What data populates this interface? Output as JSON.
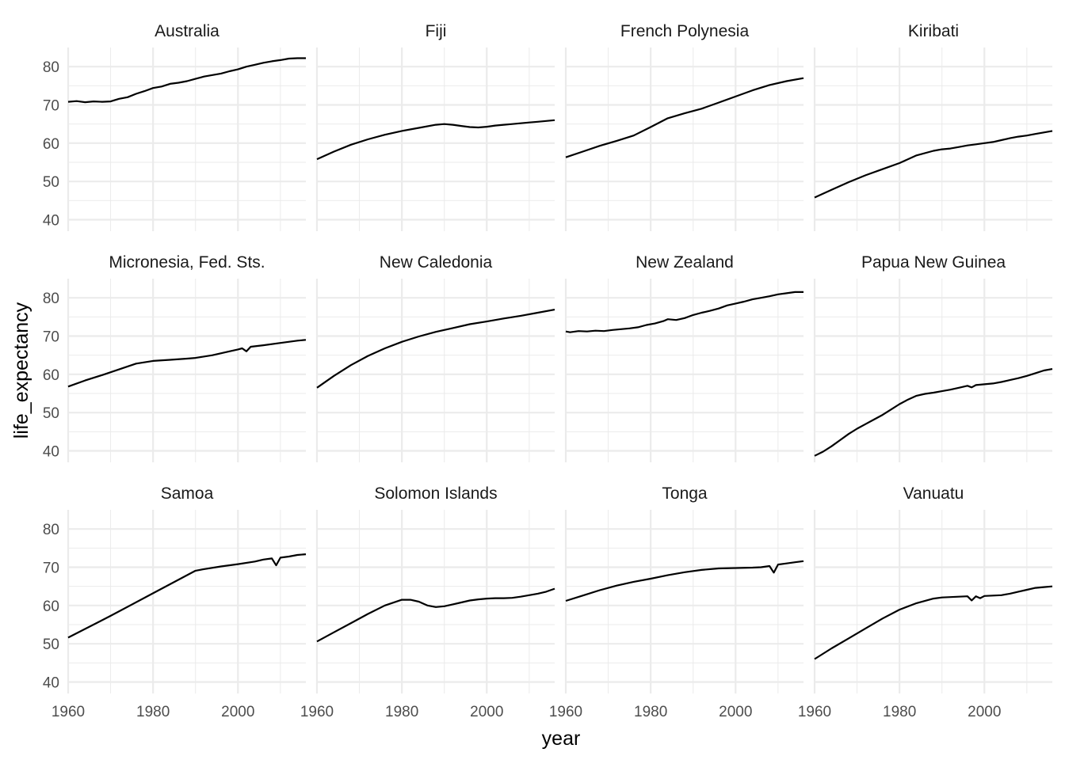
{
  "chart_data": {
    "type": "line",
    "layout": "facet-grid",
    "xlabel": "year",
    "ylabel": "life_expectancy",
    "xlim": [
      1960,
      2016
    ],
    "ylim": [
      37,
      85
    ],
    "x_ticks": [
      1960,
      1980,
      2000
    ],
    "x_tick_labels": [
      "1960",
      "1980",
      "2000"
    ],
    "y_ticks": [
      40,
      50,
      60,
      70,
      80
    ],
    "y_tick_labels": [
      "40",
      "50",
      "60",
      "70",
      "80"
    ],
    "grid": true,
    "line_color": "#000000",
    "grid_color": "#ebebeb",
    "panels": [
      {
        "title": "Australia",
        "points": [
          [
            1960,
            70.8
          ],
          [
            1962,
            71.0
          ],
          [
            1964,
            70.7
          ],
          [
            1966,
            70.9
          ],
          [
            1968,
            70.8
          ],
          [
            1970,
            70.9
          ],
          [
            1972,
            71.6
          ],
          [
            1974,
            72.0
          ],
          [
            1976,
            72.9
          ],
          [
            1978,
            73.6
          ],
          [
            1980,
            74.4
          ],
          [
            1982,
            74.8
          ],
          [
            1984,
            75.5
          ],
          [
            1986,
            75.8
          ],
          [
            1988,
            76.2
          ],
          [
            1990,
            76.8
          ],
          [
            1992,
            77.4
          ],
          [
            1994,
            77.8
          ],
          [
            1996,
            78.2
          ],
          [
            1998,
            78.8
          ],
          [
            2000,
            79.3
          ],
          [
            2002,
            80.0
          ],
          [
            2004,
            80.5
          ],
          [
            2006,
            81.0
          ],
          [
            2008,
            81.4
          ],
          [
            2010,
            81.7
          ],
          [
            2012,
            82.1
          ],
          [
            2014,
            82.2
          ],
          [
            2016,
            82.2
          ]
        ]
      },
      {
        "title": "Fiji",
        "points": [
          [
            1960,
            55.8
          ],
          [
            1964,
            57.8
          ],
          [
            1968,
            59.6
          ],
          [
            1972,
            61.0
          ],
          [
            1976,
            62.2
          ],
          [
            1980,
            63.2
          ],
          [
            1984,
            64.0
          ],
          [
            1988,
            64.8
          ],
          [
            1990,
            65.0
          ],
          [
            1992,
            64.8
          ],
          [
            1994,
            64.5
          ],
          [
            1996,
            64.2
          ],
          [
            1998,
            64.1
          ],
          [
            2000,
            64.3
          ],
          [
            2002,
            64.6
          ],
          [
            2004,
            64.8
          ],
          [
            2006,
            65.0
          ],
          [
            2008,
            65.2
          ],
          [
            2010,
            65.4
          ],
          [
            2012,
            65.6
          ],
          [
            2014,
            65.8
          ],
          [
            2016,
            66.0
          ]
        ]
      },
      {
        "title": "French Polynesia",
        "points": [
          [
            1960,
            56.3
          ],
          [
            1964,
            57.8
          ],
          [
            1968,
            59.3
          ],
          [
            1972,
            60.6
          ],
          [
            1976,
            62.0
          ],
          [
            1980,
            64.2
          ],
          [
            1984,
            66.5
          ],
          [
            1988,
            67.8
          ],
          [
            1992,
            69.0
          ],
          [
            1996,
            70.6
          ],
          [
            2000,
            72.2
          ],
          [
            2004,
            73.8
          ],
          [
            2008,
            75.2
          ],
          [
            2012,
            76.2
          ],
          [
            2016,
            77.0
          ]
        ]
      },
      {
        "title": "Kiribati",
        "points": [
          [
            1960,
            45.8
          ],
          [
            1964,
            47.8
          ],
          [
            1968,
            49.8
          ],
          [
            1972,
            51.6
          ],
          [
            1976,
            53.2
          ],
          [
            1980,
            54.8
          ],
          [
            1984,
            56.8
          ],
          [
            1988,
            58.0
          ],
          [
            1990,
            58.4
          ],
          [
            1992,
            58.6
          ],
          [
            1994,
            59.0
          ],
          [
            1996,
            59.4
          ],
          [
            1998,
            59.7
          ],
          [
            2000,
            60.0
          ],
          [
            2002,
            60.3
          ],
          [
            2004,
            60.8
          ],
          [
            2006,
            61.3
          ],
          [
            2008,
            61.7
          ],
          [
            2010,
            62.0
          ],
          [
            2012,
            62.4
          ],
          [
            2014,
            62.8
          ],
          [
            2016,
            63.2
          ]
        ]
      },
      {
        "title": "Micronesia, Fed. Sts.",
        "points": [
          [
            1960,
            56.8
          ],
          [
            1964,
            58.4
          ],
          [
            1968,
            59.8
          ],
          [
            1972,
            61.3
          ],
          [
            1976,
            62.8
          ],
          [
            1980,
            63.5
          ],
          [
            1984,
            63.8
          ],
          [
            1988,
            64.1
          ],
          [
            1990,
            64.3
          ],
          [
            1994,
            65.0
          ],
          [
            1998,
            66.0
          ],
          [
            2000,
            66.5
          ],
          [
            2001,
            66.8
          ],
          [
            2002,
            66.0
          ],
          [
            2003,
            67.2
          ],
          [
            2006,
            67.6
          ],
          [
            2010,
            68.2
          ],
          [
            2014,
            68.8
          ],
          [
            2016,
            69.0
          ]
        ]
      },
      {
        "title": "New Caledonia",
        "points": [
          [
            1960,
            56.5
          ],
          [
            1964,
            59.6
          ],
          [
            1968,
            62.4
          ],
          [
            1972,
            64.8
          ],
          [
            1976,
            66.8
          ],
          [
            1980,
            68.5
          ],
          [
            1984,
            69.9
          ],
          [
            1988,
            71.1
          ],
          [
            1992,
            72.1
          ],
          [
            1996,
            73.1
          ],
          [
            2000,
            73.8
          ],
          [
            2004,
            74.6
          ],
          [
            2008,
            75.3
          ],
          [
            2012,
            76.1
          ],
          [
            2016,
            76.9
          ]
        ]
      },
      {
        "title": "New Zealand",
        "points": [
          [
            1960,
            71.2
          ],
          [
            1961,
            71.0
          ],
          [
            1963,
            71.3
          ],
          [
            1965,
            71.2
          ],
          [
            1967,
            71.4
          ],
          [
            1969,
            71.3
          ],
          [
            1971,
            71.6
          ],
          [
            1973,
            71.8
          ],
          [
            1975,
            72.0
          ],
          [
            1977,
            72.3
          ],
          [
            1979,
            72.9
          ],
          [
            1981,
            73.3
          ],
          [
            1983,
            73.9
          ],
          [
            1984,
            74.4
          ],
          [
            1986,
            74.2
          ],
          [
            1988,
            74.7
          ],
          [
            1990,
            75.5
          ],
          [
            1992,
            76.1
          ],
          [
            1994,
            76.6
          ],
          [
            1996,
            77.2
          ],
          [
            1998,
            78.0
          ],
          [
            2000,
            78.5
          ],
          [
            2002,
            79.0
          ],
          [
            2004,
            79.6
          ],
          [
            2006,
            80.0
          ],
          [
            2008,
            80.4
          ],
          [
            2010,
            80.9
          ],
          [
            2012,
            81.2
          ],
          [
            2014,
            81.5
          ],
          [
            2016,
            81.5
          ]
        ]
      },
      {
        "title": "Papua New Guinea",
        "points": [
          [
            1960,
            38.7
          ],
          [
            1962,
            39.8
          ],
          [
            1964,
            41.2
          ],
          [
            1966,
            42.8
          ],
          [
            1968,
            44.4
          ],
          [
            1970,
            45.8
          ],
          [
            1972,
            47.0
          ],
          [
            1974,
            48.2
          ],
          [
            1976,
            49.4
          ],
          [
            1978,
            50.8
          ],
          [
            1980,
            52.2
          ],
          [
            1982,
            53.4
          ],
          [
            1984,
            54.4
          ],
          [
            1986,
            54.9
          ],
          [
            1988,
            55.2
          ],
          [
            1990,
            55.6
          ],
          [
            1992,
            56.0
          ],
          [
            1994,
            56.5
          ],
          [
            1996,
            57.0
          ],
          [
            1997,
            56.6
          ],
          [
            1998,
            57.2
          ],
          [
            2000,
            57.4
          ],
          [
            2002,
            57.6
          ],
          [
            2004,
            58.0
          ],
          [
            2006,
            58.5
          ],
          [
            2008,
            59.0
          ],
          [
            2010,
            59.6
          ],
          [
            2012,
            60.3
          ],
          [
            2014,
            61.0
          ],
          [
            2016,
            61.4
          ]
        ]
      },
      {
        "title": "Samoa",
        "points": [
          [
            1960,
            51.6
          ],
          [
            1970,
            57.3
          ],
          [
            1980,
            63.2
          ],
          [
            1990,
            69.1
          ],
          [
            1992,
            69.5
          ],
          [
            1996,
            70.2
          ],
          [
            2000,
            70.8
          ],
          [
            2004,
            71.5
          ],
          [
            2006,
            72.0
          ],
          [
            2008,
            72.3
          ],
          [
            2009,
            70.5
          ],
          [
            2010,
            72.5
          ],
          [
            2012,
            72.8
          ],
          [
            2014,
            73.2
          ],
          [
            2016,
            73.4
          ]
        ]
      },
      {
        "title": "Solomon Islands",
        "points": [
          [
            1960,
            50.6
          ],
          [
            1964,
            53.0
          ],
          [
            1968,
            55.4
          ],
          [
            1972,
            57.8
          ],
          [
            1976,
            60.0
          ],
          [
            1980,
            61.5
          ],
          [
            1982,
            61.5
          ],
          [
            1984,
            61.0
          ],
          [
            1986,
            60.0
          ],
          [
            1988,
            59.6
          ],
          [
            1990,
            59.8
          ],
          [
            1992,
            60.3
          ],
          [
            1994,
            60.8
          ],
          [
            1996,
            61.3
          ],
          [
            1998,
            61.6
          ],
          [
            2000,
            61.8
          ],
          [
            2002,
            61.9
          ],
          [
            2004,
            61.9
          ],
          [
            2006,
            62.0
          ],
          [
            2008,
            62.3
          ],
          [
            2010,
            62.7
          ],
          [
            2012,
            63.1
          ],
          [
            2014,
            63.6
          ],
          [
            2016,
            64.4
          ]
        ]
      },
      {
        "title": "Tonga",
        "points": [
          [
            1960,
            61.2
          ],
          [
            1964,
            62.6
          ],
          [
            1968,
            64.0
          ],
          [
            1972,
            65.2
          ],
          [
            1976,
            66.2
          ],
          [
            1980,
            67.0
          ],
          [
            1984,
            67.9
          ],
          [
            1988,
            68.7
          ],
          [
            1992,
            69.3
          ],
          [
            1996,
            69.7
          ],
          [
            2000,
            69.8
          ],
          [
            2004,
            69.9
          ],
          [
            2006,
            70.0
          ],
          [
            2008,
            70.3
          ],
          [
            2009,
            68.6
          ],
          [
            2010,
            70.7
          ],
          [
            2012,
            71.0
          ],
          [
            2014,
            71.3
          ],
          [
            2016,
            71.6
          ]
        ]
      },
      {
        "title": "Vanuatu",
        "points": [
          [
            1960,
            46.0
          ],
          [
            1964,
            48.8
          ],
          [
            1968,
            51.4
          ],
          [
            1972,
            54.0
          ],
          [
            1976,
            56.6
          ],
          [
            1980,
            58.9
          ],
          [
            1984,
            60.6
          ],
          [
            1988,
            61.8
          ],
          [
            1990,
            62.1
          ],
          [
            1992,
            62.2
          ],
          [
            1994,
            62.3
          ],
          [
            1996,
            62.4
          ],
          [
            1997,
            61.3
          ],
          [
            1998,
            62.4
          ],
          [
            1999,
            61.9
          ],
          [
            2000,
            62.5
          ],
          [
            2002,
            62.6
          ],
          [
            2004,
            62.7
          ],
          [
            2006,
            63.1
          ],
          [
            2008,
            63.6
          ],
          [
            2010,
            64.1
          ],
          [
            2012,
            64.6
          ],
          [
            2014,
            64.8
          ],
          [
            2016,
            65.0
          ]
        ]
      }
    ]
  }
}
